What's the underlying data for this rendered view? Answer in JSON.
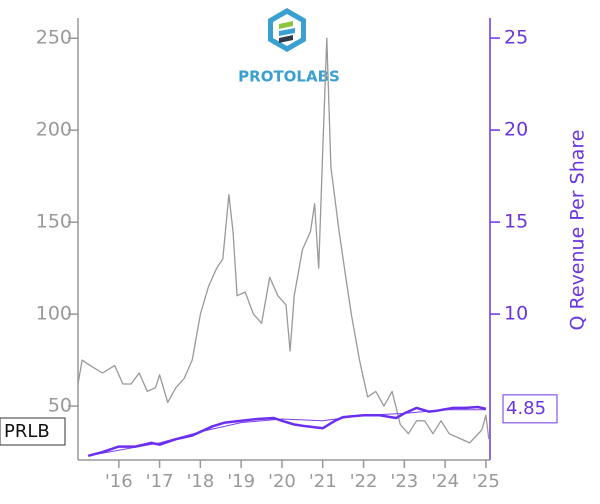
{
  "chart_data": {
    "type": "line",
    "brand": "PROTOLABS",
    "ticker": "PRLB",
    "y2label": "Q Revenue Per Share",
    "last_value_label": "4.85",
    "xlim": [
      2015.0,
      2025.1
    ],
    "xticks": [
      {
        "value": 2016,
        "label": "'16"
      },
      {
        "value": 2017,
        "label": "'17"
      },
      {
        "value": 2018,
        "label": "'18"
      },
      {
        "value": 2019,
        "label": "'19"
      },
      {
        "value": 2020,
        "label": "'20"
      },
      {
        "value": 2021,
        "label": "'21"
      },
      {
        "value": 2022,
        "label": "'22"
      },
      {
        "value": 2023,
        "label": "'23"
      },
      {
        "value": 2024,
        "label": "'24"
      },
      {
        "value": 2025,
        "label": "'25"
      }
    ],
    "ylim": [
      20.7,
      261
    ],
    "yticks": [
      50,
      100,
      150,
      200,
      250
    ],
    "y2lim": [
      2.07,
      26.09
    ],
    "y2ticks": [
      10,
      15,
      20,
      25
    ],
    "series": [
      {
        "color": "#999999",
        "width": 1.3,
        "x": [
          2015.0,
          2015.1,
          2015.3,
          2015.6,
          2015.9,
          2016.1,
          2016.3,
          2016.5,
          2016.7,
          2016.9,
          2017.0,
          2017.2,
          2017.4,
          2017.6,
          2017.8,
          2018.0,
          2018.2,
          2018.4,
          2018.55,
          2018.7,
          2018.8,
          2018.9,
          2019.1,
          2019.3,
          2019.5,
          2019.7,
          2019.9,
          2020.1,
          2020.2,
          2020.3,
          2020.5,
          2020.7,
          2020.8,
          2020.9,
          2021.0,
          2021.1,
          2021.2,
          2021.4,
          2021.5,
          2021.7,
          2021.9,
          2022.1,
          2022.3,
          2022.5,
          2022.7,
          2022.9,
          2023.1,
          2023.3,
          2023.5,
          2023.7,
          2023.9,
          2024.1,
          2024.3,
          2024.6,
          2024.9,
          2025.0,
          2025.07
        ],
        "values": [
          62,
          75,
          72,
          68,
          72,
          62,
          62,
          68,
          58,
          60,
          67,
          52,
          60,
          65,
          75,
          100,
          115,
          125,
          130,
          165,
          145,
          110,
          112,
          100,
          95,
          120,
          110,
          105,
          80,
          110,
          135,
          145,
          160,
          125,
          190,
          250,
          180,
          145,
          130,
          100,
          75,
          55,
          58,
          50,
          58,
          40,
          35,
          42,
          42,
          35,
          42,
          35,
          33,
          30,
          37,
          45,
          32
        ]
      },
      {
        "color": "#7a3fe6",
        "width": 1,
        "axis": "y2",
        "x": [
          2015.25,
          2016.0,
          2017.0,
          2018.0,
          2019.0,
          2020.0,
          2021.0,
          2022.0,
          2023.0,
          2024.0,
          2025.0
        ],
        "values": [
          2.3,
          2.6,
          3.0,
          3.6,
          4.1,
          4.3,
          4.2,
          4.5,
          4.6,
          4.8,
          4.8
        ]
      },
      {
        "color": "#6a2ff0",
        "width": 2.5,
        "axis": "y2",
        "x": [
          2015.25,
          2015.6,
          2016.0,
          2016.4,
          2016.8,
          2017.0,
          2017.4,
          2017.8,
          2018.0,
          2018.3,
          2018.6,
          2019.0,
          2019.4,
          2019.8,
          2020.0,
          2020.3,
          2020.6,
          2021.0,
          2021.3,
          2021.5,
          2022.0,
          2022.4,
          2022.8,
          2023.0,
          2023.3,
          2023.6,
          2023.8,
          2024.2,
          2024.5,
          2024.8,
          2025.0
        ],
        "values": [
          2.3,
          2.5,
          2.8,
          2.8,
          3.0,
          2.9,
          3.2,
          3.4,
          3.6,
          3.9,
          4.1,
          4.2,
          4.3,
          4.35,
          4.2,
          4.0,
          3.9,
          3.8,
          4.2,
          4.4,
          4.5,
          4.5,
          4.35,
          4.6,
          4.9,
          4.7,
          4.75,
          4.9,
          4.9,
          4.95,
          4.85
        ]
      }
    ]
  }
}
